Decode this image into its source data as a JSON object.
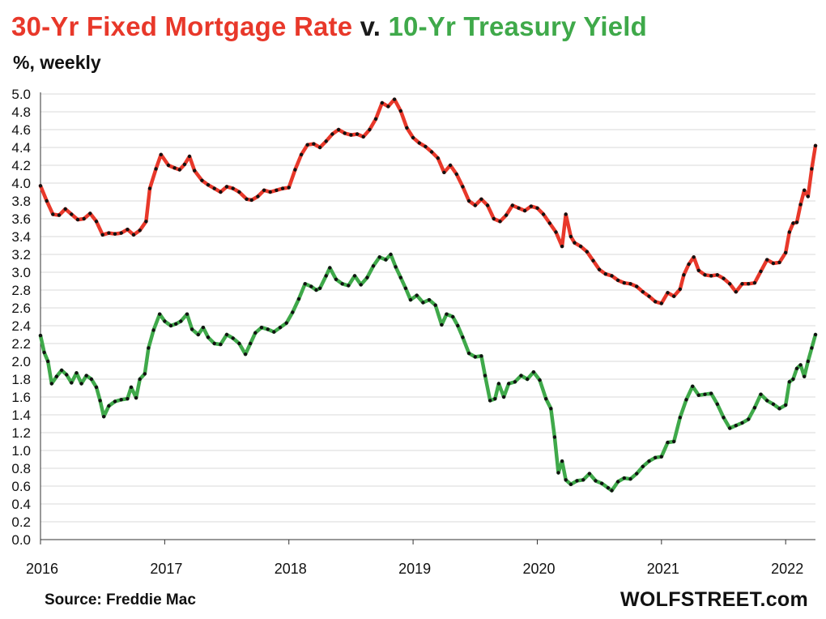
{
  "title": {
    "part1": "30-Yr Fixed Mortgage Rate",
    "part2": " v. ",
    "part3": "10-Yr Treasury Yield"
  },
  "subtitle": "%, weekly",
  "source": "Source: Freddie Mac",
  "brand": "WOLFSTREET.com",
  "colors": {
    "mortgage": "#e8382a",
    "treasury": "#3fa94a",
    "title_dark": "#1a1a1a",
    "grid": "#d9d9d9",
    "dots": "#111111"
  },
  "chart_data": {
    "type": "line",
    "title": "30-Yr Fixed Mortgage Rate v. 10-Yr Treasury Yield",
    "ylabel": "%, weekly",
    "xlabel": "",
    "ylim": [
      0.0,
      5.0
    ],
    "xlim": [
      2016.0,
      2022.24
    ],
    "y_ticks": [
      "0.0",
      "0.2",
      "0.4",
      "0.6",
      "0.8",
      "1.0",
      "1.2",
      "1.4",
      "1.6",
      "1.8",
      "2.0",
      "2.2",
      "2.4",
      "2.6",
      "2.8",
      "3.0",
      "3.2",
      "3.4",
      "3.6",
      "3.8",
      "4.0",
      "4.2",
      "4.4",
      "4.6",
      "4.8",
      "5.0"
    ],
    "x_ticks": [
      {
        "label": "2016",
        "x": 2016
      },
      {
        "label": "2017",
        "x": 2017
      },
      {
        "label": "2018",
        "x": 2018
      },
      {
        "label": "2019",
        "x": 2019
      },
      {
        "label": "2020",
        "x": 2020
      },
      {
        "label": "2021",
        "x": 2021
      },
      {
        "label": "2022",
        "x": 2022
      }
    ],
    "series": [
      {
        "name": "30-Yr Fixed Mortgage Rate",
        "color_key": "mortgage",
        "points": [
          [
            2016.0,
            3.97
          ],
          [
            2016.05,
            3.8
          ],
          [
            2016.1,
            3.65
          ],
          [
            2016.15,
            3.64
          ],
          [
            2016.2,
            3.71
          ],
          [
            2016.25,
            3.65
          ],
          [
            2016.3,
            3.59
          ],
          [
            2016.35,
            3.6
          ],
          [
            2016.4,
            3.66
          ],
          [
            2016.45,
            3.57
          ],
          [
            2016.5,
            3.42
          ],
          [
            2016.55,
            3.44
          ],
          [
            2016.6,
            3.43
          ],
          [
            2016.65,
            3.44
          ],
          [
            2016.7,
            3.48
          ],
          [
            2016.75,
            3.42
          ],
          [
            2016.8,
            3.47
          ],
          [
            2016.85,
            3.57
          ],
          [
            2016.88,
            3.94
          ],
          [
            2016.93,
            4.16
          ],
          [
            2016.97,
            4.32
          ],
          [
            2017.03,
            4.2
          ],
          [
            2017.08,
            4.17
          ],
          [
            2017.12,
            4.15
          ],
          [
            2017.16,
            4.21
          ],
          [
            2017.2,
            4.3
          ],
          [
            2017.24,
            4.14
          ],
          [
            2017.3,
            4.03
          ],
          [
            2017.35,
            3.98
          ],
          [
            2017.4,
            3.94
          ],
          [
            2017.45,
            3.9
          ],
          [
            2017.5,
            3.96
          ],
          [
            2017.55,
            3.94
          ],
          [
            2017.6,
            3.9
          ],
          [
            2017.66,
            3.82
          ],
          [
            2017.7,
            3.81
          ],
          [
            2017.75,
            3.85
          ],
          [
            2017.8,
            3.92
          ],
          [
            2017.85,
            3.9
          ],
          [
            2017.9,
            3.92
          ],
          [
            2017.95,
            3.94
          ],
          [
            2018.0,
            3.95
          ],
          [
            2018.05,
            4.15
          ],
          [
            2018.1,
            4.32
          ],
          [
            2018.15,
            4.43
          ],
          [
            2018.2,
            4.44
          ],
          [
            2018.25,
            4.4
          ],
          [
            2018.3,
            4.47
          ],
          [
            2018.35,
            4.55
          ],
          [
            2018.4,
            4.6
          ],
          [
            2018.45,
            4.56
          ],
          [
            2018.5,
            4.54
          ],
          [
            2018.55,
            4.55
          ],
          [
            2018.6,
            4.52
          ],
          [
            2018.65,
            4.6
          ],
          [
            2018.7,
            4.72
          ],
          [
            2018.75,
            4.9
          ],
          [
            2018.8,
            4.86
          ],
          [
            2018.85,
            4.94
          ],
          [
            2018.9,
            4.81
          ],
          [
            2018.95,
            4.62
          ],
          [
            2019.0,
            4.51
          ],
          [
            2019.05,
            4.45
          ],
          [
            2019.1,
            4.41
          ],
          [
            2019.15,
            4.35
          ],
          [
            2019.2,
            4.28
          ],
          [
            2019.25,
            4.12
          ],
          [
            2019.3,
            4.2
          ],
          [
            2019.35,
            4.1
          ],
          [
            2019.4,
            3.96
          ],
          [
            2019.45,
            3.8
          ],
          [
            2019.5,
            3.75
          ],
          [
            2019.55,
            3.82
          ],
          [
            2019.6,
            3.75
          ],
          [
            2019.65,
            3.6
          ],
          [
            2019.7,
            3.57
          ],
          [
            2019.75,
            3.64
          ],
          [
            2019.8,
            3.75
          ],
          [
            2019.85,
            3.72
          ],
          [
            2019.9,
            3.69
          ],
          [
            2019.95,
            3.74
          ],
          [
            2020.0,
            3.72
          ],
          [
            2020.05,
            3.65
          ],
          [
            2020.1,
            3.55
          ],
          [
            2020.15,
            3.45
          ],
          [
            2020.2,
            3.29
          ],
          [
            2020.23,
            3.65
          ],
          [
            2020.27,
            3.4
          ],
          [
            2020.3,
            3.33
          ],
          [
            2020.35,
            3.29
          ],
          [
            2020.4,
            3.23
          ],
          [
            2020.45,
            3.13
          ],
          [
            2020.5,
            3.03
          ],
          [
            2020.55,
            2.98
          ],
          [
            2020.6,
            2.96
          ],
          [
            2020.65,
            2.91
          ],
          [
            2020.7,
            2.88
          ],
          [
            2020.75,
            2.87
          ],
          [
            2020.8,
            2.84
          ],
          [
            2020.85,
            2.78
          ],
          [
            2020.9,
            2.73
          ],
          [
            2020.95,
            2.67
          ],
          [
            2021.0,
            2.65
          ],
          [
            2021.05,
            2.77
          ],
          [
            2021.1,
            2.73
          ],
          [
            2021.15,
            2.81
          ],
          [
            2021.18,
            2.97
          ],
          [
            2021.22,
            3.09
          ],
          [
            2021.26,
            3.17
          ],
          [
            2021.3,
            3.02
          ],
          [
            2021.35,
            2.97
          ],
          [
            2021.4,
            2.96
          ],
          [
            2021.45,
            2.97
          ],
          [
            2021.5,
            2.93
          ],
          [
            2021.55,
            2.87
          ],
          [
            2021.6,
            2.78
          ],
          [
            2021.65,
            2.87
          ],
          [
            2021.7,
            2.87
          ],
          [
            2021.75,
            2.88
          ],
          [
            2021.8,
            3.01
          ],
          [
            2021.85,
            3.14
          ],
          [
            2021.9,
            3.1
          ],
          [
            2021.95,
            3.11
          ],
          [
            2022.0,
            3.22
          ],
          [
            2022.03,
            3.45
          ],
          [
            2022.06,
            3.55
          ],
          [
            2022.09,
            3.56
          ],
          [
            2022.12,
            3.76
          ],
          [
            2022.15,
            3.92
          ],
          [
            2022.18,
            3.85
          ],
          [
            2022.21,
            4.16
          ],
          [
            2022.24,
            4.42
          ]
        ]
      },
      {
        "name": "10-Yr Treasury Yield",
        "color_key": "treasury",
        "points": [
          [
            2016.0,
            2.29
          ],
          [
            2016.03,
            2.1
          ],
          [
            2016.06,
            2.0
          ],
          [
            2016.09,
            1.75
          ],
          [
            2016.13,
            1.83
          ],
          [
            2016.17,
            1.9
          ],
          [
            2016.21,
            1.85
          ],
          [
            2016.25,
            1.76
          ],
          [
            2016.29,
            1.87
          ],
          [
            2016.33,
            1.75
          ],
          [
            2016.37,
            1.84
          ],
          [
            2016.41,
            1.8
          ],
          [
            2016.45,
            1.71
          ],
          [
            2016.48,
            1.56
          ],
          [
            2016.51,
            1.38
          ],
          [
            2016.55,
            1.5
          ],
          [
            2016.6,
            1.55
          ],
          [
            2016.65,
            1.57
          ],
          [
            2016.7,
            1.58
          ],
          [
            2016.73,
            1.71
          ],
          [
            2016.77,
            1.59
          ],
          [
            2016.8,
            1.8
          ],
          [
            2016.84,
            1.86
          ],
          [
            2016.87,
            2.15
          ],
          [
            2016.91,
            2.35
          ],
          [
            2016.96,
            2.53
          ],
          [
            2017.0,
            2.45
          ],
          [
            2017.05,
            2.4
          ],
          [
            2017.09,
            2.42
          ],
          [
            2017.13,
            2.45
          ],
          [
            2017.18,
            2.53
          ],
          [
            2017.22,
            2.36
          ],
          [
            2017.27,
            2.3
          ],
          [
            2017.31,
            2.38
          ],
          [
            2017.35,
            2.27
          ],
          [
            2017.4,
            2.2
          ],
          [
            2017.45,
            2.19
          ],
          [
            2017.5,
            2.3
          ],
          [
            2017.55,
            2.26
          ],
          [
            2017.6,
            2.2
          ],
          [
            2017.65,
            2.08
          ],
          [
            2017.69,
            2.2
          ],
          [
            2017.73,
            2.32
          ],
          [
            2017.78,
            2.38
          ],
          [
            2017.83,
            2.36
          ],
          [
            2017.88,
            2.33
          ],
          [
            2017.93,
            2.38
          ],
          [
            2017.98,
            2.43
          ],
          [
            2018.03,
            2.55
          ],
          [
            2018.08,
            2.7
          ],
          [
            2018.13,
            2.87
          ],
          [
            2018.18,
            2.84
          ],
          [
            2018.22,
            2.8
          ],
          [
            2018.25,
            2.82
          ],
          [
            2018.3,
            2.96
          ],
          [
            2018.33,
            3.05
          ],
          [
            2018.38,
            2.92
          ],
          [
            2018.43,
            2.87
          ],
          [
            2018.48,
            2.85
          ],
          [
            2018.53,
            2.96
          ],
          [
            2018.58,
            2.86
          ],
          [
            2018.63,
            2.94
          ],
          [
            2018.68,
            3.07
          ],
          [
            2018.73,
            3.17
          ],
          [
            2018.78,
            3.14
          ],
          [
            2018.82,
            3.2
          ],
          [
            2018.86,
            3.06
          ],
          [
            2018.9,
            2.94
          ],
          [
            2018.94,
            2.82
          ],
          [
            2018.98,
            2.69
          ],
          [
            2019.03,
            2.74
          ],
          [
            2019.08,
            2.66
          ],
          [
            2019.13,
            2.69
          ],
          [
            2019.18,
            2.63
          ],
          [
            2019.23,
            2.41
          ],
          [
            2019.27,
            2.53
          ],
          [
            2019.32,
            2.5
          ],
          [
            2019.36,
            2.4
          ],
          [
            2019.4,
            2.27
          ],
          [
            2019.45,
            2.09
          ],
          [
            2019.5,
            2.05
          ],
          [
            2019.55,
            2.06
          ],
          [
            2019.58,
            1.84
          ],
          [
            2019.62,
            1.56
          ],
          [
            2019.66,
            1.58
          ],
          [
            2019.69,
            1.75
          ],
          [
            2019.73,
            1.6
          ],
          [
            2019.77,
            1.75
          ],
          [
            2019.82,
            1.77
          ],
          [
            2019.87,
            1.84
          ],
          [
            2019.92,
            1.8
          ],
          [
            2019.97,
            1.88
          ],
          [
            2020.02,
            1.79
          ],
          [
            2020.07,
            1.58
          ],
          [
            2020.11,
            1.47
          ],
          [
            2020.14,
            1.15
          ],
          [
            2020.17,
            0.75
          ],
          [
            2020.2,
            0.88
          ],
          [
            2020.23,
            0.67
          ],
          [
            2020.27,
            0.62
          ],
          [
            2020.32,
            0.66
          ],
          [
            2020.37,
            0.67
          ],
          [
            2020.42,
            0.74
          ],
          [
            2020.47,
            0.66
          ],
          [
            2020.52,
            0.63
          ],
          [
            2020.57,
            0.58
          ],
          [
            2020.6,
            0.55
          ],
          [
            2020.65,
            0.65
          ],
          [
            2020.7,
            0.69
          ],
          [
            2020.75,
            0.68
          ],
          [
            2020.8,
            0.74
          ],
          [
            2020.85,
            0.82
          ],
          [
            2020.9,
            0.88
          ],
          [
            2020.95,
            0.92
          ],
          [
            2021.0,
            0.93
          ],
          [
            2021.05,
            1.09
          ],
          [
            2021.1,
            1.1
          ],
          [
            2021.15,
            1.37
          ],
          [
            2021.2,
            1.57
          ],
          [
            2021.25,
            1.72
          ],
          [
            2021.3,
            1.62
          ],
          [
            2021.35,
            1.63
          ],
          [
            2021.4,
            1.64
          ],
          [
            2021.45,
            1.52
          ],
          [
            2021.5,
            1.37
          ],
          [
            2021.55,
            1.25
          ],
          [
            2021.6,
            1.28
          ],
          [
            2021.65,
            1.31
          ],
          [
            2021.7,
            1.35
          ],
          [
            2021.75,
            1.48
          ],
          [
            2021.8,
            1.63
          ],
          [
            2021.85,
            1.56
          ],
          [
            2021.9,
            1.52
          ],
          [
            2021.95,
            1.47
          ],
          [
            2022.0,
            1.51
          ],
          [
            2022.03,
            1.77
          ],
          [
            2022.06,
            1.8
          ],
          [
            2022.09,
            1.92
          ],
          [
            2022.12,
            1.96
          ],
          [
            2022.15,
            1.83
          ],
          [
            2022.18,
            2.0
          ],
          [
            2022.21,
            2.15
          ],
          [
            2022.24,
            2.3
          ]
        ]
      }
    ]
  }
}
